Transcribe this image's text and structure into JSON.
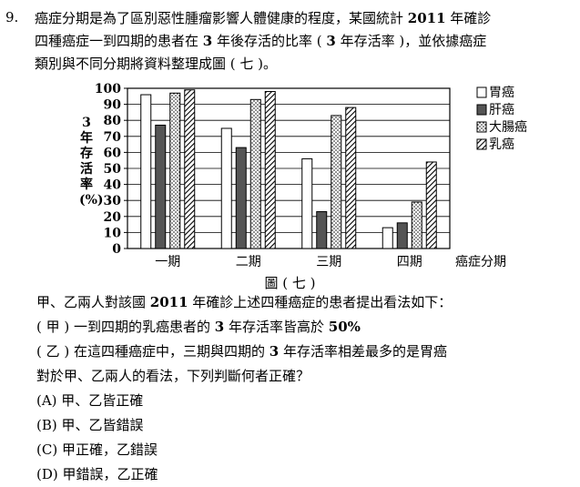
{
  "question": {
    "number": "9.",
    "stem_lines": [
      [
        "癌症分期是為了區別惡性腫瘤影響人體健康的程度，某國統計 ",
        "2011",
        " 年確診"
      ],
      [
        "四種癌症一到四期的患者在 ",
        "3",
        " 年後存活的比率 ( ",
        "3",
        " 年存活率 )，並依據癌症"
      ],
      [
        "類別與不同分期將資料整理成圖 ( 七 )。"
      ]
    ],
    "figure_caption": "圖 ( 七 )",
    "body_lines": [
      [
        "甲、乙兩人對該國 ",
        "2011",
        " 年確診上述四種癌症的患者提出看法如下："
      ],
      [
        "( 甲 ) 一到四期的乳癌患者的 ",
        "3",
        " 年存活率皆高於 ",
        "50%"
      ],
      [
        "( 乙 ) 在這四種癌症中，三期與四期的 ",
        "3",
        " 年存活率相差最多的是胃癌"
      ],
      [
        "對於甲、乙兩人的看法，下列判斷何者正確？"
      ],
      [
        "(A) 甲、乙皆正確"
      ],
      [
        "(B) 甲、乙皆錯誤"
      ],
      [
        "(C) 甲正確，乙錯誤"
      ],
      [
        "(D) 甲錯誤，乙正確"
      ]
    ]
  },
  "chart_data": {
    "type": "bar",
    "categories": [
      "一期",
      "二期",
      "三期",
      "四期"
    ],
    "xlabel": "癌症分期",
    "ylabel_chars": [
      "3",
      "年",
      "存",
      "活",
      "率",
      "(%)"
    ],
    "ylim": [
      0,
      100
    ],
    "yticks": [
      0,
      10,
      20,
      30,
      40,
      50,
      60,
      70,
      80,
      90,
      100
    ],
    "legend_position": "right",
    "series": [
      {
        "name": "胃癌",
        "pattern": "white",
        "values": [
          96,
          75,
          56,
          13
        ]
      },
      {
        "name": "肝癌",
        "pattern": "dark-gray",
        "values": [
          77,
          63,
          23,
          16
        ]
      },
      {
        "name": "大腸癌",
        "pattern": "dotted",
        "values": [
          97,
          93,
          83,
          29
        ]
      },
      {
        "name": "乳癌",
        "pattern": "diagonal-hatch",
        "values": [
          99,
          98,
          88,
          54
        ]
      }
    ]
  }
}
